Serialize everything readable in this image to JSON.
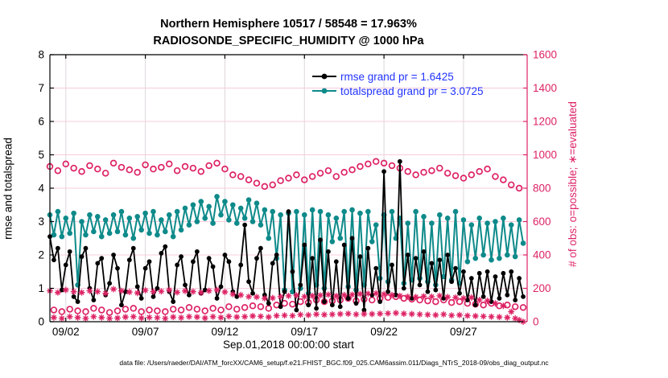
{
  "title": {
    "line1": "Northern Hemisphere 10517 / 58548 = 17.963%",
    "line2": "RADIOSONDE_SPECIFIC_HUMIDITY @ 1000 hPa"
  },
  "footer": "data file: /Users/raeder/DAI/ATM_forcXX/CAM6_setup/f.e21.FHIST_BGC.f09_025.CAM6assim.011/Diags_NTrS_2018-09/obs_diag_output.nc",
  "legend": {
    "entries": [
      {
        "label": "rmse grand pr = 1.6425",
        "series": "rmse"
      },
      {
        "label": "totalspread grand pr = 3.0725",
        "series": "totalspread"
      }
    ]
  },
  "colors": {
    "rmse": "#000000",
    "totalspread": "#0e8a8a",
    "obs": "#dd2264",
    "legend_text": "#2233ff",
    "grid_h": "#f7ccdb",
    "grid_v": "#ddd6dc",
    "axis_left": "#000000",
    "axis_right": "#dd2264"
  },
  "chart_data": {
    "type": "line",
    "title": "Northern Hemisphere 10517 / 58548 = 17.963% | RADIOSONDE_SPECIFIC_HUMIDITY @ 1000 hPa",
    "xlabel": "Sep.01,2018 00:00:00 start",
    "ylabel_left": "rmse and totalspread",
    "ylabel_right": "# of obs: o=possible; ∗=evaluated",
    "grand_pr": {
      "rmse": 1.6425,
      "totalspread": 3.0725
    },
    "obs_possible_total": 58548,
    "obs_evaluated_total": 10517,
    "obs_evaluated_percent": 17.963,
    "x_start_day": 1,
    "x_step_days": 0.25,
    "xlim_days": [
      1,
      31
    ],
    "xticks": [
      {
        "day": 2,
        "label": "09/02"
      },
      {
        "day": 7,
        "label": "09/07"
      },
      {
        "day": 12,
        "label": "09/12"
      },
      {
        "day": 17,
        "label": "09/17"
      },
      {
        "day": 22,
        "label": "09/22"
      },
      {
        "day": 27,
        "label": "09/27"
      }
    ],
    "ylim_left": [
      0,
      8
    ],
    "yticks_left": [
      0,
      1,
      2,
      3,
      4,
      5,
      6,
      7,
      8
    ],
    "ylim_right": [
      0,
      1600
    ],
    "yticks_right": [
      0,
      200,
      400,
      600,
      800,
      1000,
      1200,
      1400,
      1600
    ],
    "series": [
      {
        "name": "possible",
        "marker": "open-circle",
        "axis": "right",
        "values": [
          930,
          70,
          905,
          60,
          945,
          75,
          920,
          65,
          900,
          60,
          935,
          80,
          915,
          70,
          890,
          55,
          950,
          65,
          925,
          75,
          910,
          80,
          895,
          60,
          940,
          70,
          915,
          65,
          925,
          60,
          945,
          75,
          905,
          70,
          930,
          85,
          920,
          75,
          900,
          65,
          935,
          80,
          950,
          70,
          915,
          90,
          880,
          75,
          870,
          85,
          850,
          95,
          830,
          90,
          810,
          80,
          820,
          100,
          845,
          110,
          860,
          105,
          880,
          120,
          850,
          115,
          870,
          130,
          890,
          120,
          905,
          125,
          870,
          130,
          895,
          140,
          910,
          125,
          930,
          135,
          945,
          130,
          960,
          140,
          950,
          145,
          935,
          150,
          920,
          140,
          900,
          135,
          880,
          130,
          895,
          125,
          905,
          120,
          920,
          130,
          890,
          115,
          875,
          120,
          860,
          110,
          880,
          105,
          900,
          100,
          915,
          110,
          870,
          95,
          850,
          100,
          820,
          90,
          800,
          85
        ]
      },
      {
        "name": "totalspread",
        "marker": "line-dot",
        "axis": "left",
        "values": [
          3.2,
          2.6,
          3.3,
          2.55,
          3.1,
          2.65,
          3.25,
          1.1,
          3.0,
          2.6,
          3.2,
          2.7,
          3.15,
          2.55,
          3.05,
          2.65,
          3.2,
          2.7,
          3.3,
          2.6,
          3.1,
          2.5,
          3.15,
          2.75,
          3.25,
          2.65,
          3.3,
          2.6,
          3.05,
          2.7,
          3.2,
          2.55,
          3.3,
          2.75,
          3.4,
          2.9,
          3.5,
          3.0,
          3.6,
          3.1,
          3.45,
          2.95,
          3.75,
          3.2,
          3.6,
          3.05,
          3.5,
          2.95,
          3.4,
          3.1,
          3.65,
          3.0,
          3.55,
          2.9,
          3.35,
          2.5,
          3.3,
          1.9,
          3.2,
          0.95,
          3.25,
          0.9,
          3.3,
          1.0,
          3.2,
          0.85,
          3.35,
          1.1,
          3.3,
          1.0,
          3.2,
          2.4,
          3.1,
          2.5,
          3.3,
          1.05,
          3.35,
          0.95,
          3.25,
          1.1,
          3.3,
          2.4,
          2.9,
          1.3,
          3.2,
          1.2,
          3.3,
          2.5,
          3.1,
          1.15,
          2.95,
          1.25,
          3.3,
          1.3,
          3.15,
          1.2,
          2.95,
          1.1,
          3.2,
          1.35,
          3.1,
          1.25,
          3.3,
          1.15,
          3.05,
          1.8,
          2.9,
          1.9,
          3.1,
          2.0,
          2.95,
          1.85,
          3.0,
          1.9,
          3.1,
          2.0,
          2.9,
          1.95,
          3.05,
          2.35
        ]
      },
      {
        "name": "rmse",
        "marker": "line-dot",
        "axis": "left",
        "values": [
          2.55,
          1.85,
          2.2,
          0.95,
          1.7,
          2.1,
          0.75,
          0.6,
          1.95,
          2.2,
          1.0,
          0.65,
          1.75,
          1.9,
          0.8,
          1.15,
          2.0,
          1.6,
          0.5,
          0.9,
          1.85,
          2.2,
          1.05,
          0.7,
          1.6,
          1.8,
          0.75,
          1.0,
          2.05,
          2.25,
          0.9,
          0.6,
          1.7,
          1.95,
          1.1,
          0.8,
          1.8,
          2.1,
          0.85,
          0.95,
          1.9,
          1.65,
          0.7,
          1.05,
          2.0,
          1.8,
          0.9,
          0.75,
          1.7,
          2.9,
          1.2,
          0.85,
          1.9,
          2.2,
          0.8,
          0.55,
          1.75,
          2.0,
          0.45,
          0.9,
          3.3,
          1.5,
          0.35,
          1.1,
          2.3,
          0.5,
          1.9,
          0.4,
          2.45,
          0.6,
          2.1,
          0.5,
          1.8,
          0.45,
          2.3,
          0.7,
          2.5,
          0.55,
          1.95,
          0.35,
          2.2,
          0.8,
          1.6,
          0.6,
          4.5,
          0.9,
          1.7,
          0.8,
          4.8,
          1.0,
          2.0,
          0.7,
          1.9,
          1.1,
          2.1,
          0.9,
          1.75,
          0.95,
          1.85,
          0.7,
          2.0,
          1.2,
          1.6,
          0.85,
          1.5,
          0.65,
          1.3,
          0.5,
          1.45,
          0.75,
          1.5,
          0.6,
          1.35,
          0.7,
          1.45,
          0.8,
          1.5,
          0.65,
          1.3,
          0.75
        ]
      },
      {
        "name": "evaluated",
        "marker": "asterisk",
        "axis": "right",
        "values": [
          185,
          25,
          175,
          20,
          190,
          30,
          180,
          25,
          175,
          20,
          185,
          30,
          180,
          25,
          170,
          20,
          195,
          22,
          185,
          28,
          178,
          30,
          172,
          22,
          188,
          26,
          180,
          24,
          182,
          20,
          190,
          28,
          176,
          24,
          184,
          30,
          180,
          28,
          174,
          22,
          185,
          30,
          190,
          25,
          178,
          32,
          165,
          28,
          160,
          30,
          150,
          34,
          148,
          32,
          140,
          28,
          142,
          36,
          150,
          38,
          155,
          36,
          158,
          42,
          150,
          40,
          155,
          45,
          158,
          42,
          162,
          44,
          154,
          46,
          160,
          48,
          162,
          44,
          166,
          46,
          168,
          46,
          170,
          48,
          165,
          50,
          160,
          52,
          155,
          48,
          150,
          46,
          148,
          44,
          152,
          42,
          150,
          40,
          155,
          44,
          148,
          38,
          145,
          40,
          140,
          36,
          145,
          34,
          130,
          32,
          125,
          30,
          110,
          28,
          95,
          25,
          60,
          20,
          10,
          0
        ]
      }
    ]
  }
}
